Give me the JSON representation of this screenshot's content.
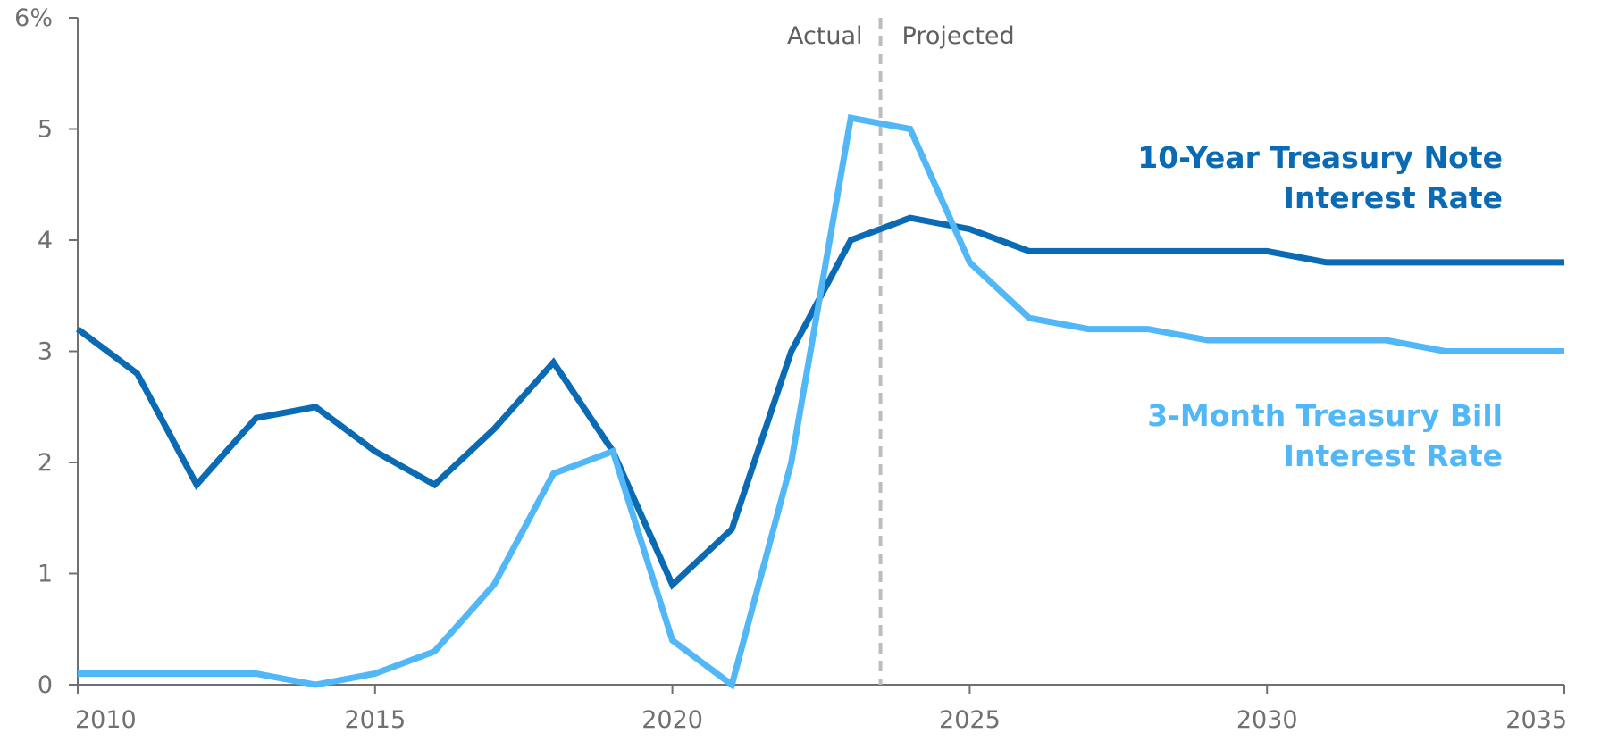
{
  "chart_data": {
    "type": "line",
    "title": "",
    "xlabel": "",
    "ylabel": "",
    "xlim": [
      2010,
      2035
    ],
    "ylim": [
      0,
      6
    ],
    "x_ticks": [
      2010,
      2015,
      2020,
      2025,
      2030,
      2035
    ],
    "y_ticks": [
      0,
      1,
      2,
      3,
      4,
      5,
      6
    ],
    "y_tick_labels": [
      "0",
      "1",
      "2",
      "3",
      "4",
      "5",
      "6%"
    ],
    "grid": false,
    "divider": {
      "x": 2023.5,
      "left_label": "Actual",
      "right_label": "Projected"
    },
    "x": [
      2010,
      2011,
      2012,
      2013,
      2014,
      2015,
      2016,
      2017,
      2018,
      2019,
      2020,
      2021,
      2022,
      2023,
      2024,
      2025,
      2026,
      2027,
      2028,
      2029,
      2030,
      2031,
      2032,
      2033,
      2034,
      2035
    ],
    "series": [
      {
        "name_lines": [
          "10-Year Treasury Note",
          "Interest Rate"
        ],
        "color": "#0a6ab4",
        "values": [
          3.2,
          2.8,
          1.8,
          2.4,
          2.5,
          2.1,
          1.8,
          2.3,
          2.9,
          2.1,
          0.9,
          1.4,
          3.0,
          4.0,
          4.2,
          4.1,
          3.9,
          3.9,
          3.9,
          3.9,
          3.9,
          3.8,
          3.8,
          3.8,
          3.8,
          3.8
        ]
      },
      {
        "name_lines": [
          "3-Month Treasury Bill",
          "Interest Rate"
        ],
        "color": "#52b7f7",
        "values": [
          0.1,
          0.1,
          0.1,
          0.1,
          0.0,
          0.1,
          0.3,
          0.9,
          1.9,
          2.1,
          0.4,
          0.0,
          2.0,
          5.1,
          5.0,
          3.8,
          3.3,
          3.2,
          3.2,
          3.1,
          3.1,
          3.1,
          3.1,
          3.0,
          3.0,
          3.0
        ]
      }
    ]
  }
}
